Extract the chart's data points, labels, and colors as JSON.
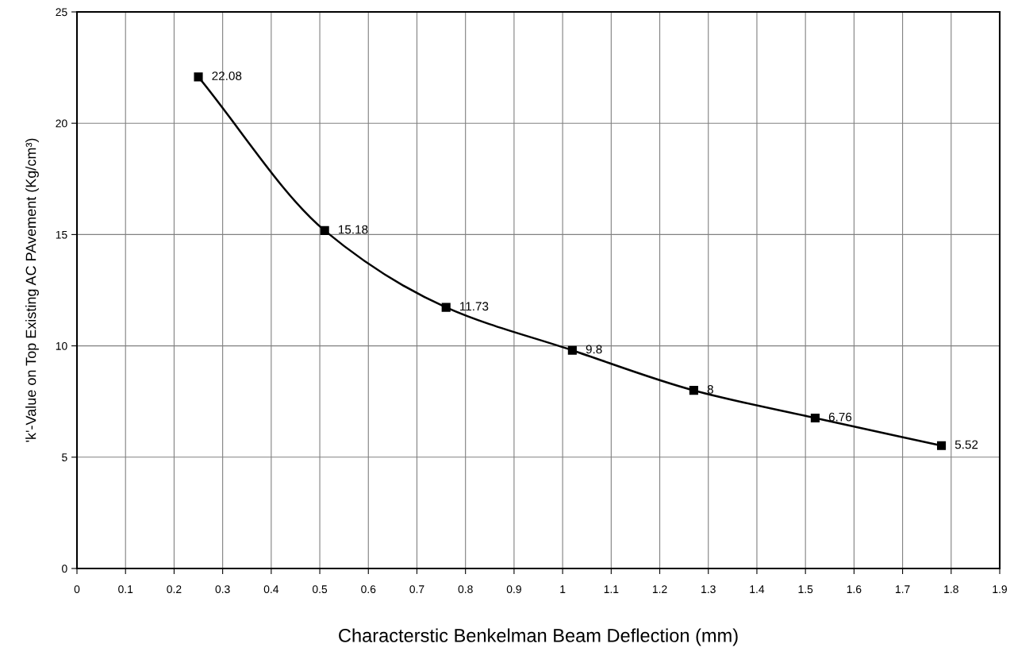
{
  "chart_data": {
    "type": "line",
    "xlabel": "Characterstic Benkelman Beam Deflection (mm)",
    "ylabel": "'k'-Value on Top Existing AC PAvement (Kg/cm³)",
    "x": [
      0.25,
      0.51,
      0.76,
      1.02,
      1.27,
      1.52,
      1.78
    ],
    "series": [
      {
        "color": "#000000",
        "values": [
          22.08,
          15.18,
          11.73,
          9.8,
          8,
          6.76,
          5.52
        ]
      }
    ],
    "value_labels": [
      "22.08",
      "15.18",
      "11.73",
      "9.8",
      "8",
      "6.76",
      "5.52"
    ],
    "xlim": [
      0,
      1.9
    ],
    "xticks": [
      0,
      0.1,
      0.2,
      0.3,
      0.4,
      0.5,
      0.6,
      0.7,
      0.8,
      0.9,
      1,
      1.1,
      1.2,
      1.3,
      1.4,
      1.5,
      1.6,
      1.7,
      1.8,
      1.9
    ],
    "ylim": [
      0,
      25
    ],
    "yticks": [
      0,
      5,
      10,
      15,
      20,
      25
    ],
    "grid": true,
    "marker": "square",
    "line_style": "solid",
    "legend": false
  }
}
